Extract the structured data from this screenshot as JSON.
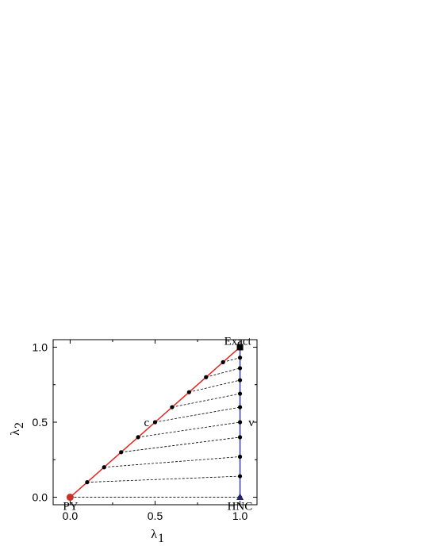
{
  "chart_data": {
    "type": "scatter",
    "xlabel": "λ",
    "xlabel_sub": "1",
    "ylabel": "λ",
    "ylabel_sub": "2",
    "xlim": [
      -0.1,
      1.1
    ],
    "ylim": [
      -0.05,
      1.05
    ],
    "x_ticks": [
      0.0,
      0.5,
      1.0
    ],
    "x_tick_labels": [
      "0.0",
      "0.5",
      "1.0"
    ],
    "y_ticks": [
      0.0,
      0.5,
      1.0
    ],
    "y_tick_labels": [
      "0.0",
      "0.5",
      "1.0"
    ],
    "grid": false,
    "colors": {
      "c_route": "#e8221c",
      "v_route": "#3a3aa8",
      "markers": "#000000",
      "connectors": "#000000"
    },
    "series": [
      {
        "route": "c",
        "line": "solid",
        "x": [
          0.0,
          0.1,
          0.2,
          0.3,
          0.4,
          0.5,
          0.6,
          0.7,
          0.8,
          0.9,
          1.0
        ],
        "y": [
          0.0,
          0.1,
          0.2,
          0.3,
          0.4,
          0.5,
          0.6,
          0.7,
          0.8,
          0.9,
          1.0
        ]
      },
      {
        "route": "v",
        "line": "solid",
        "x": [
          1.0,
          1.0,
          1.0,
          1.0,
          1.0,
          1.0,
          1.0,
          1.0,
          1.0,
          1.0,
          1.0
        ],
        "y": [
          0.0,
          0.14,
          0.27,
          0.4,
          0.5,
          0.6,
          0.69,
          0.78,
          0.86,
          0.93,
          1.0
        ]
      }
    ],
    "connectors": [
      {
        "from": [
          0.0,
          0.0
        ],
        "to": [
          1.0,
          0.0
        ]
      },
      {
        "from": [
          0.1,
          0.1
        ],
        "to": [
          1.0,
          0.14
        ]
      },
      {
        "from": [
          0.2,
          0.2
        ],
        "to": [
          1.0,
          0.27
        ]
      },
      {
        "from": [
          0.3,
          0.3
        ],
        "to": [
          1.0,
          0.4
        ]
      },
      {
        "from": [
          0.4,
          0.4
        ],
        "to": [
          1.0,
          0.5
        ]
      },
      {
        "from": [
          0.5,
          0.5
        ],
        "to": [
          1.0,
          0.6
        ]
      },
      {
        "from": [
          0.6,
          0.6
        ],
        "to": [
          1.0,
          0.69
        ]
      },
      {
        "from": [
          0.7,
          0.7
        ],
        "to": [
          1.0,
          0.78
        ]
      },
      {
        "from": [
          0.8,
          0.8
        ],
        "to": [
          1.0,
          0.86
        ]
      },
      {
        "from": [
          0.9,
          0.9
        ],
        "to": [
          1.0,
          0.93
        ]
      }
    ],
    "special_points": [
      {
        "name": "PY",
        "x": 0.0,
        "y": 0.0,
        "marker": "circle",
        "color": "#c83228"
      },
      {
        "name": "HNC",
        "x": 1.0,
        "y": 0.0,
        "marker": "triangle",
        "color": "#22226e"
      },
      {
        "name": "Exact",
        "x": 1.0,
        "y": 1.0,
        "marker": "square",
        "color": "#000000"
      }
    ],
    "annotations": [
      {
        "text": "PY",
        "x": 0.0,
        "y": 0.0
      },
      {
        "text": "HNC",
        "x": 1.0,
        "y": 0.0
      },
      {
        "text": "Exact",
        "x": 1.0,
        "y": 1.0
      },
      {
        "text": "c",
        "x": 0.45,
        "y": 0.5
      },
      {
        "text": "v",
        "x": 1.04,
        "y": 0.5
      }
    ]
  }
}
